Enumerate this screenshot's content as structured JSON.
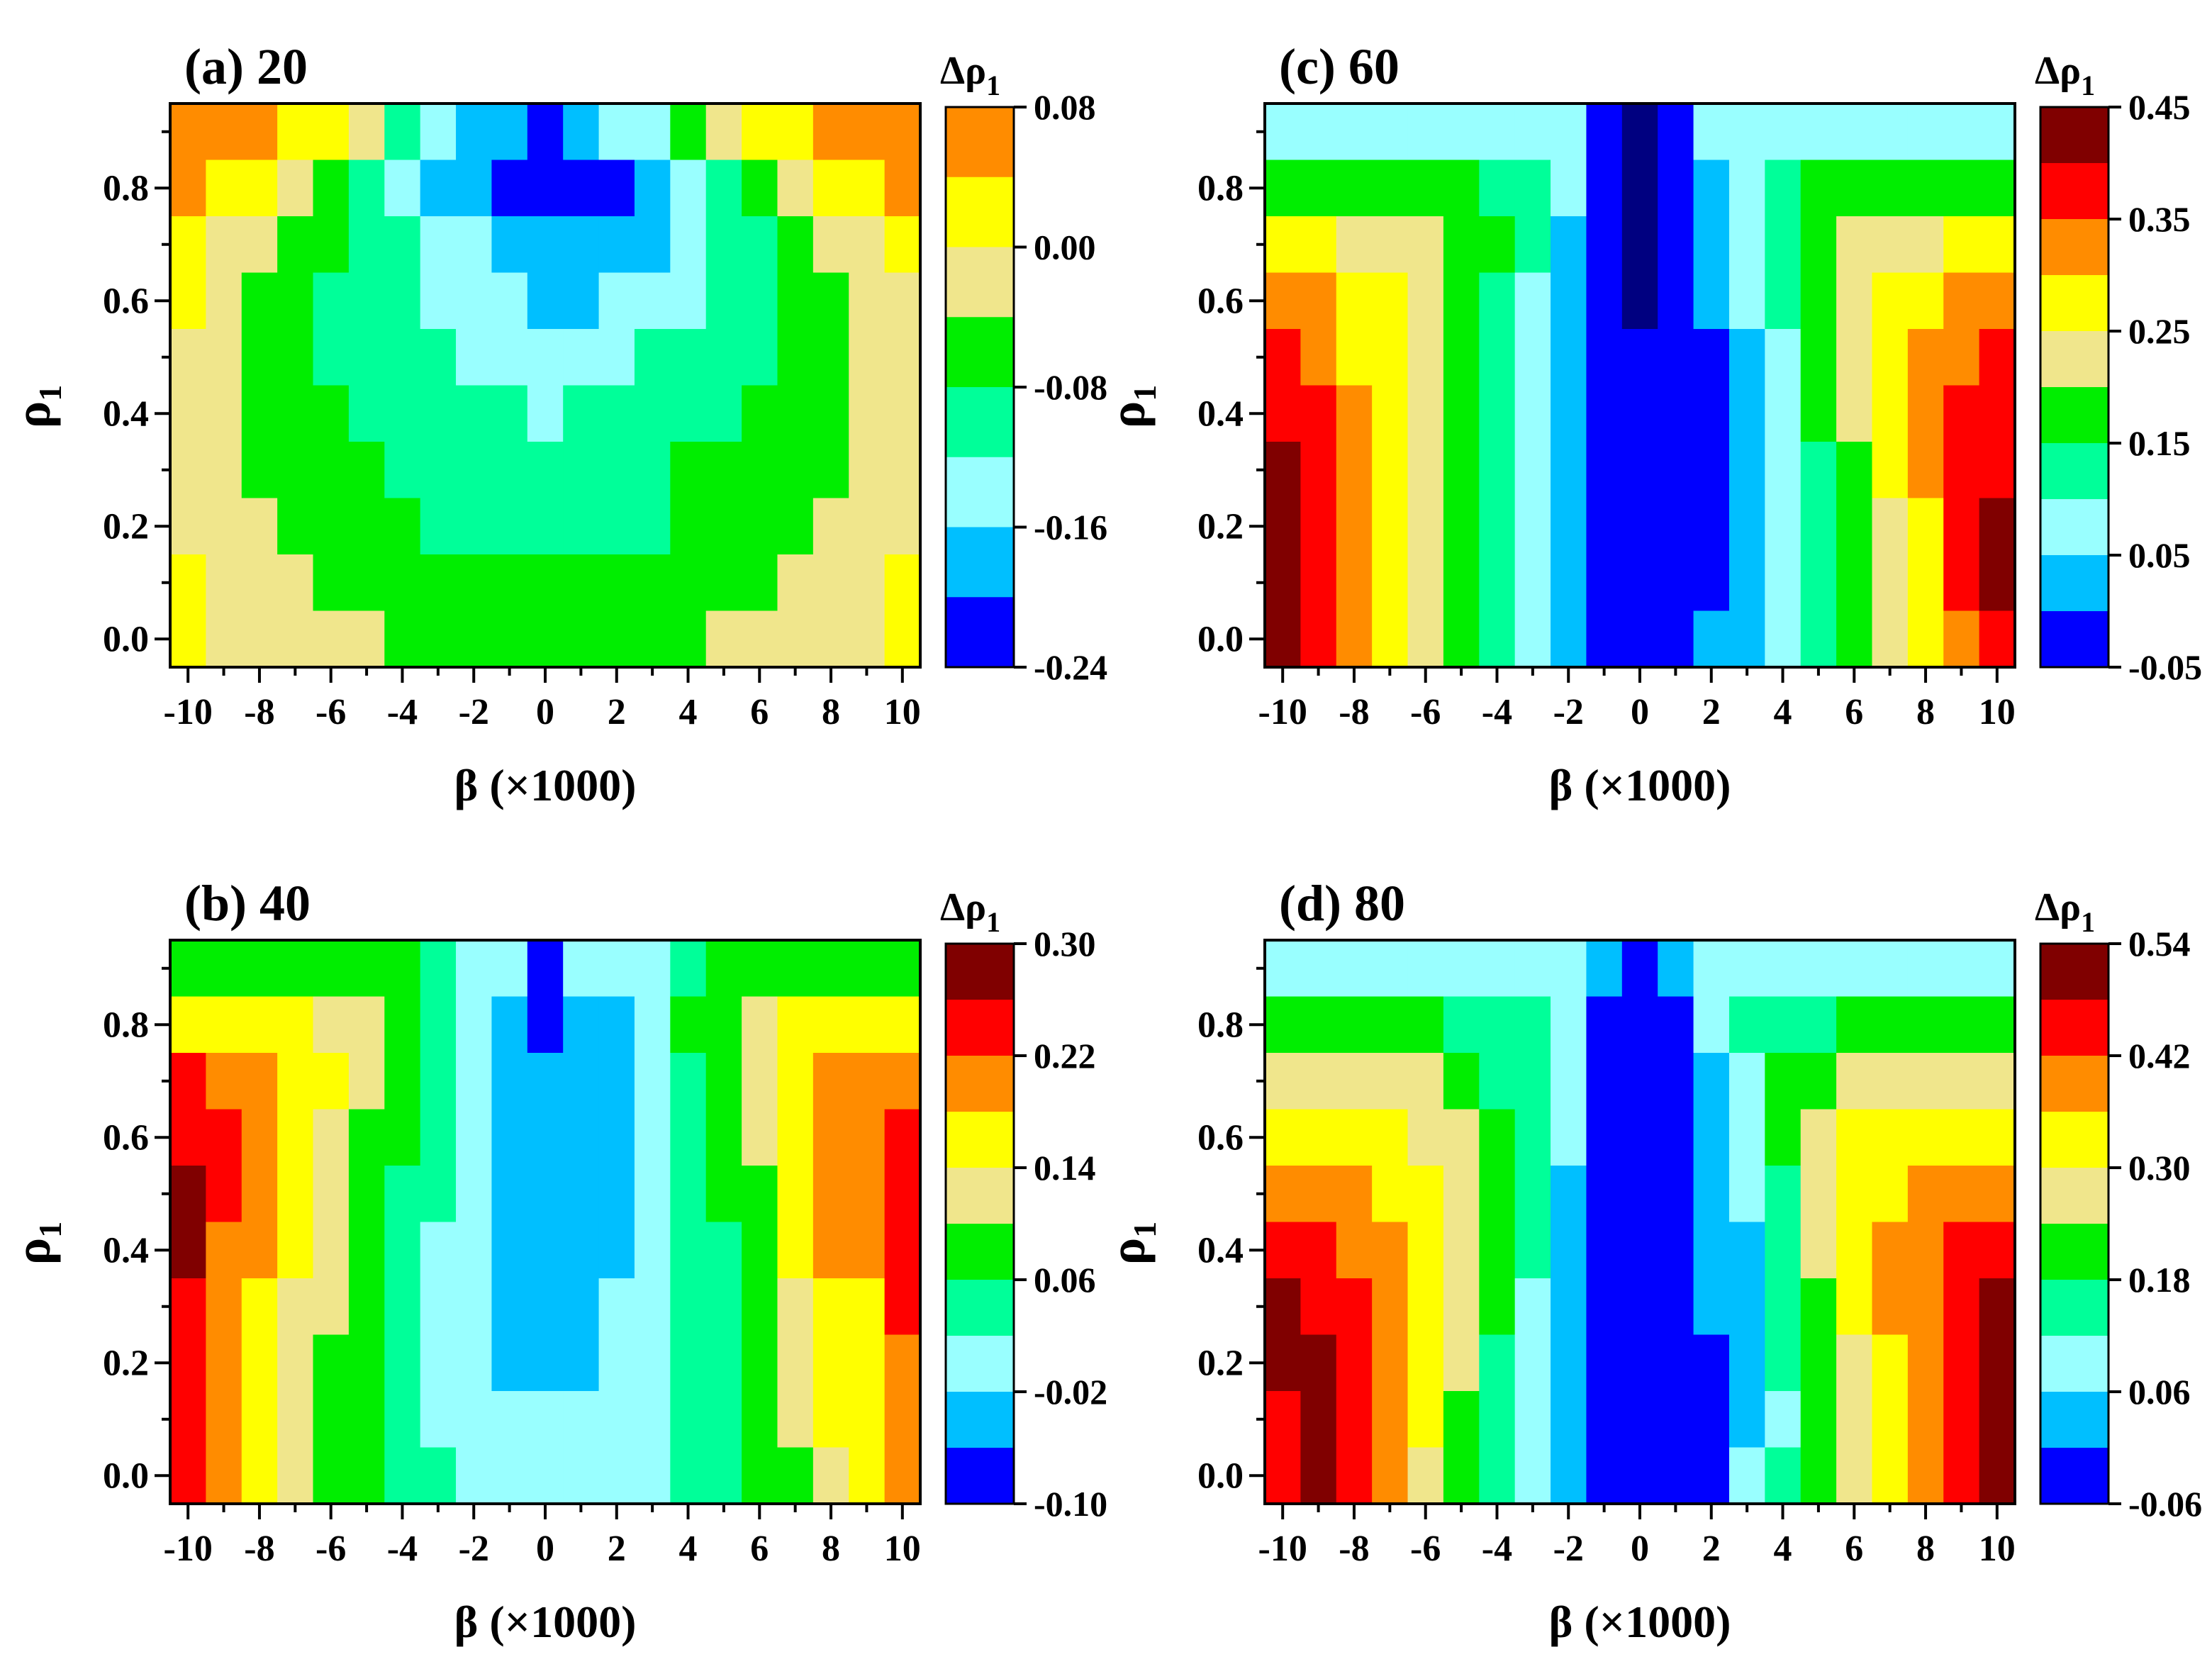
{
  "figure": {
    "xlabel": "β (×1000)",
    "ylabel": "ρ",
    "ylabel_sub": "1",
    "cbar_title": "Δρ",
    "cbar_title_sub": "1"
  },
  "chart_data": [
    {
      "type": "heatmap",
      "panel": "a",
      "title": "(a) 20",
      "x_values": [
        -10,
        -9,
        -8,
        -7,
        -6,
        -5,
        -4,
        -3,
        -2,
        -1,
        0,
        1,
        2,
        3,
        4,
        5,
        6,
        7,
        8,
        9,
        10
      ],
      "y_values": [
        0.0,
        0.1,
        0.2,
        0.3,
        0.4,
        0.5,
        0.6,
        0.7,
        0.8,
        0.9
      ],
      "xticks": [
        "-10",
        "-8",
        "-6",
        "-4",
        "-2",
        "0",
        "2",
        "4",
        "6",
        "8",
        "10"
      ],
      "yticks": [
        "0.0",
        "0.2",
        "0.4",
        "0.6",
        "0.8"
      ],
      "colorbar_ticks": [
        "0.08",
        "0.00",
        "-0.08",
        "-0.16",
        "-0.24"
      ],
      "colors": [
        "#0000FF",
        "#00BFFF",
        "#99FFFF",
        "#00FF99",
        "#00EE00",
        "#F0E68C",
        "#FFFF00",
        "#FF8C00"
      ],
      "grid_rows_top_to_bottom": [
        [
          7,
          7,
          7,
          6,
          6,
          5,
          3,
          2,
          1,
          1,
          0,
          1,
          2,
          2,
          4,
          5,
          6,
          6,
          7,
          7,
          7
        ],
        [
          7,
          6,
          6,
          5,
          4,
          3,
          2,
          1,
          1,
          0,
          0,
          0,
          0,
          1,
          2,
          3,
          4,
          5,
          6,
          6,
          7
        ],
        [
          6,
          5,
          5,
          4,
          4,
          3,
          3,
          2,
          2,
          1,
          1,
          1,
          1,
          1,
          2,
          3,
          3,
          4,
          5,
          5,
          6
        ],
        [
          6,
          5,
          4,
          4,
          3,
          3,
          3,
          2,
          2,
          2,
          1,
          1,
          2,
          2,
          2,
          3,
          3,
          4,
          4,
          5,
          5
        ],
        [
          5,
          5,
          4,
          4,
          3,
          3,
          3,
          3,
          2,
          2,
          2,
          2,
          2,
          3,
          3,
          3,
          3,
          4,
          4,
          5,
          5
        ],
        [
          5,
          5,
          4,
          4,
          4,
          3,
          3,
          3,
          3,
          3,
          2,
          3,
          3,
          3,
          3,
          3,
          4,
          4,
          4,
          5,
          5
        ],
        [
          5,
          5,
          4,
          4,
          4,
          4,
          3,
          3,
          3,
          3,
          3,
          3,
          3,
          3,
          4,
          4,
          4,
          4,
          4,
          5,
          5
        ],
        [
          5,
          5,
          5,
          4,
          4,
          4,
          4,
          3,
          3,
          3,
          3,
          3,
          3,
          3,
          4,
          4,
          4,
          4,
          5,
          5,
          5
        ],
        [
          6,
          5,
          5,
          5,
          4,
          4,
          4,
          4,
          4,
          4,
          4,
          4,
          4,
          4,
          4,
          4,
          4,
          5,
          5,
          5,
          6
        ],
        [
          6,
          5,
          5,
          5,
          5,
          5,
          4,
          4,
          4,
          4,
          4,
          4,
          4,
          4,
          4,
          5,
          5,
          5,
          5,
          5,
          6
        ]
      ]
    },
    {
      "type": "heatmap",
      "panel": "b",
      "title": "(b) 40",
      "x_values": [
        -10,
        -9,
        -8,
        -7,
        -6,
        -5,
        -4,
        -3,
        -2,
        -1,
        0,
        1,
        2,
        3,
        4,
        5,
        6,
        7,
        8,
        9,
        10
      ],
      "y_values": [
        0.0,
        0.1,
        0.2,
        0.3,
        0.4,
        0.5,
        0.6,
        0.7,
        0.8,
        0.9
      ],
      "xticks": [
        "-10",
        "-8",
        "-6",
        "-4",
        "-2",
        "0",
        "2",
        "4",
        "6",
        "8",
        "10"
      ],
      "yticks": [
        "0.0",
        "0.2",
        "0.4",
        "0.6",
        "0.8"
      ],
      "colorbar_ticks": [
        "0.30",
        "0.22",
        "0.14",
        "0.06",
        "-0.02",
        "-0.10"
      ],
      "colors": [
        "#0000FF",
        "#00BFFF",
        "#99FFFF",
        "#00FF99",
        "#00EE00",
        "#F0E68C",
        "#FFFF00",
        "#FF8C00",
        "#FF0000",
        "#800000"
      ],
      "grid_rows_top_to_bottom": [
        [
          4,
          4,
          4,
          4,
          4,
          4,
          4,
          3,
          2,
          2,
          0,
          2,
          2,
          2,
          3,
          4,
          4,
          4,
          4,
          4,
          4
        ],
        [
          6,
          6,
          6,
          6,
          5,
          5,
          4,
          3,
          2,
          1,
          0,
          1,
          1,
          2,
          4,
          4,
          5,
          6,
          6,
          6,
          6
        ],
        [
          8,
          7,
          7,
          6,
          6,
          5,
          4,
          3,
          2,
          1,
          1,
          1,
          1,
          2,
          3,
          4,
          5,
          6,
          7,
          7,
          7
        ],
        [
          8,
          8,
          7,
          6,
          5,
          4,
          4,
          3,
          2,
          1,
          1,
          1,
          1,
          2,
          3,
          4,
          5,
          6,
          7,
          7,
          8
        ],
        [
          9,
          8,
          7,
          6,
          5,
          4,
          3,
          3,
          2,
          1,
          1,
          1,
          1,
          2,
          3,
          4,
          4,
          6,
          7,
          7,
          8
        ],
        [
          9,
          7,
          7,
          6,
          5,
          4,
          3,
          2,
          2,
          1,
          1,
          1,
          1,
          2,
          3,
          3,
          4,
          6,
          7,
          7,
          8
        ],
        [
          8,
          7,
          6,
          5,
          5,
          4,
          3,
          2,
          2,
          1,
          1,
          1,
          2,
          2,
          3,
          3,
          4,
          5,
          6,
          6,
          8
        ],
        [
          8,
          7,
          6,
          5,
          4,
          4,
          3,
          2,
          2,
          1,
          1,
          1,
          2,
          2,
          3,
          3,
          4,
          5,
          6,
          6,
          7
        ],
        [
          8,
          7,
          6,
          5,
          4,
          4,
          3,
          2,
          2,
          2,
          2,
          2,
          2,
          2,
          3,
          3,
          4,
          5,
          6,
          6,
          7
        ],
        [
          8,
          7,
          6,
          5,
          4,
          4,
          3,
          3,
          2,
          2,
          2,
          2,
          2,
          2,
          3,
          3,
          4,
          4,
          5,
          6,
          7
        ]
      ]
    },
    {
      "type": "heatmap",
      "panel": "c",
      "title": "(c) 60",
      "x_values": [
        -10,
        -9,
        -8,
        -7,
        -6,
        -5,
        -4,
        -3,
        -2,
        -1,
        0,
        1,
        2,
        3,
        4,
        5,
        6,
        7,
        8,
        9,
        10
      ],
      "y_values": [
        0.0,
        0.1,
        0.2,
        0.3,
        0.4,
        0.5,
        0.6,
        0.7,
        0.8,
        0.9
      ],
      "xticks": [
        "-10",
        "-8",
        "-6",
        "-4",
        "-2",
        "0",
        "2",
        "4",
        "6",
        "8",
        "10"
      ],
      "yticks": [
        "0.0",
        "0.2",
        "0.4",
        "0.6",
        "0.8"
      ],
      "colorbar_ticks": [
        "0.45",
        "0.35",
        "0.25",
        "0.15",
        "0.05",
        "-0.05"
      ],
      "colors": [
        "#0000FF",
        "#00BFFF",
        "#99FFFF",
        "#00FF99",
        "#00EE00",
        "#F0E68C",
        "#FFFF00",
        "#FF8C00",
        "#FF0000",
        "#800000"
      ],
      "grid_rows_top_to_bottom": [
        [
          2,
          2,
          2,
          2,
          2,
          2,
          2,
          2,
          2,
          0,
          -1,
          0,
          2,
          2,
          2,
          2,
          2,
          2,
          2,
          2,
          2
        ],
        [
          4,
          4,
          4,
          4,
          4,
          4,
          3,
          3,
          2,
          0,
          -1,
          0,
          1,
          2,
          3,
          4,
          4,
          4,
          4,
          4,
          4
        ],
        [
          6,
          6,
          5,
          5,
          5,
          4,
          4,
          3,
          1,
          0,
          -1,
          0,
          1,
          2,
          3,
          4,
          5,
          5,
          5,
          6,
          6
        ],
        [
          7,
          7,
          6,
          6,
          5,
          4,
          3,
          2,
          1,
          0,
          -1,
          0,
          1,
          2,
          3,
          4,
          5,
          6,
          6,
          7,
          7
        ],
        [
          8,
          7,
          6,
          6,
          5,
          4,
          3,
          2,
          1,
          0,
          0,
          0,
          0,
          1,
          2,
          4,
          5,
          6,
          7,
          7,
          8
        ],
        [
          8,
          8,
          7,
          6,
          5,
          4,
          3,
          2,
          1,
          0,
          0,
          0,
          0,
          1,
          2,
          4,
          5,
          6,
          7,
          8,
          8
        ],
        [
          9,
          8,
          7,
          6,
          5,
          4,
          3,
          2,
          1,
          0,
          0,
          0,
          0,
          1,
          2,
          3,
          4,
          6,
          7,
          8,
          8
        ],
        [
          9,
          8,
          7,
          6,
          5,
          4,
          3,
          2,
          1,
          0,
          0,
          0,
          0,
          1,
          2,
          3,
          4,
          5,
          6,
          8,
          9
        ],
        [
          9,
          8,
          7,
          6,
          5,
          4,
          3,
          2,
          1,
          0,
          0,
          0,
          0,
          1,
          2,
          3,
          4,
          5,
          6,
          8,
          9
        ],
        [
          9,
          8,
          7,
          6,
          5,
          4,
          3,
          2,
          1,
          0,
          0,
          0,
          1,
          1,
          2,
          3,
          4,
          5,
          6,
          7,
          8
        ]
      ]
    },
    {
      "type": "heatmap",
      "panel": "d",
      "title": "(d) 80",
      "x_values": [
        -10,
        -9,
        -8,
        -7,
        -6,
        -5,
        -4,
        -3,
        -2,
        -1,
        0,
        1,
        2,
        3,
        4,
        5,
        6,
        7,
        8,
        9,
        10
      ],
      "y_values": [
        0.0,
        0.1,
        0.2,
        0.3,
        0.4,
        0.5,
        0.6,
        0.7,
        0.8,
        0.9
      ],
      "xticks": [
        "-10",
        "-8",
        "-6",
        "-4",
        "-2",
        "0",
        "2",
        "4",
        "6",
        "8",
        "10"
      ],
      "yticks": [
        "0.0",
        "0.2",
        "0.4",
        "0.6",
        "0.8"
      ],
      "colorbar_ticks": [
        "0.54",
        "0.42",
        "0.30",
        "0.18",
        "0.06",
        "-0.06"
      ],
      "colors": [
        "#0000FF",
        "#00BFFF",
        "#99FFFF",
        "#00FF99",
        "#00EE00",
        "#F0E68C",
        "#FFFF00",
        "#FF8C00",
        "#FF0000",
        "#800000"
      ],
      "grid_rows_top_to_bottom": [
        [
          2,
          2,
          2,
          2,
          2,
          2,
          2,
          2,
          2,
          1,
          0,
          1,
          2,
          2,
          2,
          2,
          2,
          2,
          2,
          2,
          2
        ],
        [
          4,
          4,
          4,
          4,
          4,
          3,
          3,
          3,
          2,
          0,
          0,
          0,
          2,
          3,
          3,
          3,
          4,
          4,
          4,
          4,
          4
        ],
        [
          5,
          5,
          5,
          5,
          5,
          4,
          3,
          3,
          2,
          0,
          0,
          0,
          1,
          2,
          4,
          4,
          5,
          5,
          5,
          5,
          5
        ],
        [
          6,
          6,
          6,
          6,
          5,
          5,
          4,
          3,
          2,
          0,
          0,
          0,
          1,
          2,
          4,
          5,
          6,
          6,
          6,
          6,
          6
        ],
        [
          7,
          7,
          7,
          6,
          6,
          5,
          4,
          3,
          1,
          0,
          0,
          0,
          1,
          2,
          3,
          5,
          6,
          6,
          7,
          7,
          7
        ],
        [
          8,
          8,
          7,
          7,
          6,
          5,
          4,
          3,
          1,
          0,
          0,
          0,
          1,
          1,
          3,
          5,
          6,
          7,
          7,
          8,
          8
        ],
        [
          9,
          8,
          8,
          7,
          6,
          5,
          4,
          2,
          1,
          0,
          0,
          0,
          1,
          1,
          3,
          4,
          6,
          7,
          7,
          8,
          9
        ],
        [
          9,
          9,
          8,
          7,
          6,
          5,
          3,
          2,
          1,
          0,
          0,
          0,
          0,
          1,
          3,
          4,
          5,
          6,
          7,
          8,
          9
        ],
        [
          8,
          9,
          8,
          7,
          6,
          4,
          3,
          2,
          1,
          0,
          0,
          0,
          0,
          1,
          2,
          4,
          5,
          6,
          7,
          8,
          9
        ],
        [
          8,
          9,
          8,
          7,
          5,
          4,
          3,
          2,
          1,
          0,
          0,
          0,
          0,
          2,
          3,
          4,
          5,
          6,
          7,
          8,
          9
        ]
      ]
    }
  ]
}
